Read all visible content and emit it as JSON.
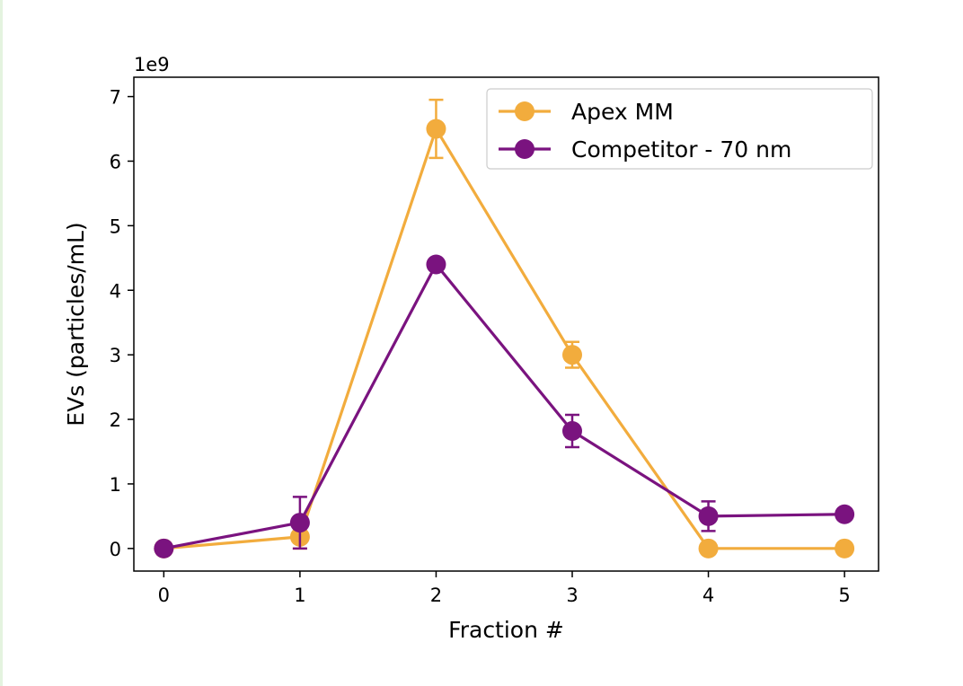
{
  "chart_data": {
    "type": "line",
    "x": [
      0,
      1,
      2,
      3,
      4,
      5
    ],
    "xlabel": "Fraction #",
    "ylabel": "EVs (particles/mL)",
    "offset_label": "1e9",
    "xlim": [
      -0.22,
      5.25
    ],
    "ylim": [
      -0.35,
      7.3
    ],
    "xticks": [
      "0",
      "1",
      "2",
      "3",
      "4",
      "5"
    ],
    "yticks": [
      "0",
      "1",
      "2",
      "3",
      "4",
      "5",
      "6",
      "7"
    ],
    "y_scale_multiplier": 1000000000,
    "grid": false,
    "legend_position": "top-right",
    "series": [
      {
        "name": "Apex MM",
        "color": "#f2ac3d",
        "values": [
          0,
          0.18,
          6.5,
          3.0,
          0,
          0
        ],
        "errors": [
          0,
          0.18,
          0.45,
          0.2,
          0,
          0
        ]
      },
      {
        "name": "Competitor - 70 nm",
        "color": "#7a137f",
        "values": [
          0,
          0.4,
          4.4,
          1.82,
          0.5,
          0.53
        ],
        "errors": [
          0,
          0.4,
          0,
          0.25,
          0.23,
          0
        ]
      }
    ]
  }
}
